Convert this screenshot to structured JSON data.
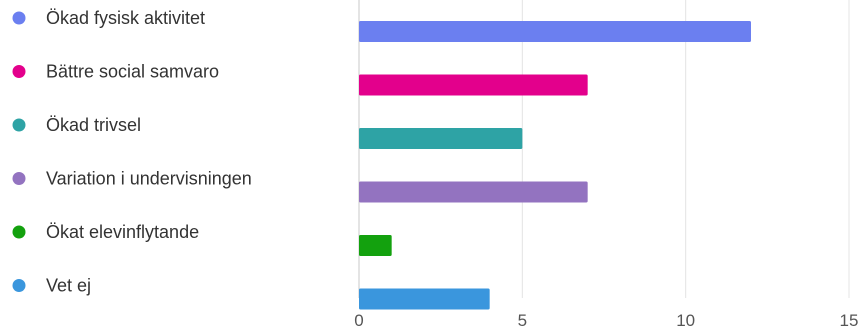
{
  "chart_data": {
    "type": "bar",
    "orientation": "horizontal",
    "categories": [
      "Ökad fysisk aktivitet",
      "Bättre social samvaro",
      "Ökad trivsel",
      "Variation i undervisningen",
      "Ökat elevinflytande",
      "Vet ej"
    ],
    "values": [
      12,
      7,
      5,
      7,
      1,
      4
    ],
    "colors": [
      "#6b7ff0",
      "#e3008c",
      "#2ea3a5",
      "#9373c0",
      "#13a10e",
      "#3a96dd"
    ],
    "xlim": [
      0,
      15
    ],
    "xticks": [
      "0",
      "5",
      "10",
      "15"
    ],
    "grid": true,
    "legend": "left"
  }
}
